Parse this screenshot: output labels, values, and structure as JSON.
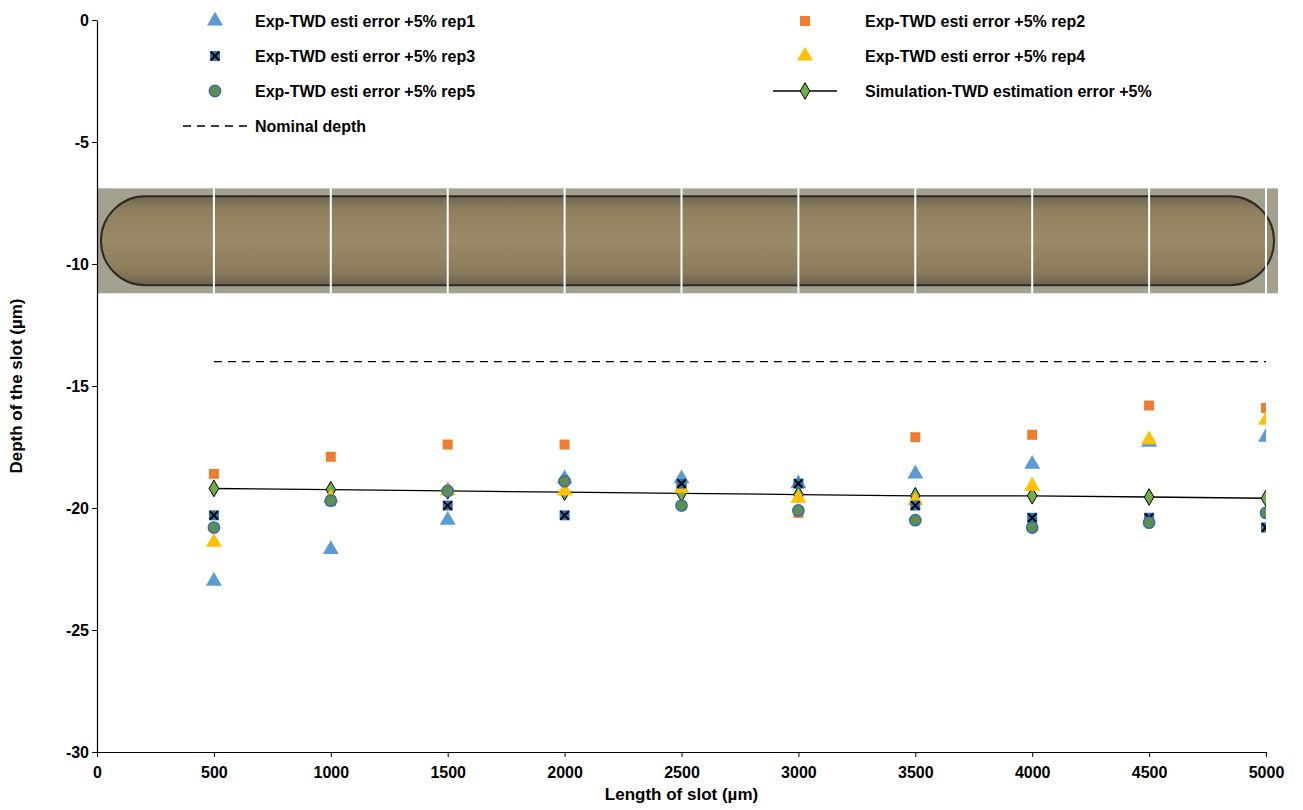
{
  "chart_data": {
    "type": "scatter",
    "x_label": "Length of slot (µm)",
    "y_label": "Depth of the slot (µm)",
    "x": [
      500,
      1000,
      1500,
      2000,
      2500,
      3000,
      3500,
      4000,
      4500,
      5000
    ],
    "series": [
      {
        "name": "Exp-TWD esti error +5% rep1",
        "type": "scatter",
        "marker": "triangle",
        "color": "#5b9bd5",
        "values": [
          -23.0,
          -21.7,
          -20.5,
          -18.8,
          -18.8,
          -19.0,
          -18.6,
          -18.2,
          -17.3,
          -17.1
        ]
      },
      {
        "name": "Exp-TWD esti error +5% rep2",
        "type": "scatter",
        "marker": "square",
        "color": "#ed7d31",
        "values": [
          -18.6,
          -17.9,
          -17.4,
          -17.4,
          -19.0,
          -20.2,
          -17.1,
          -17.0,
          -15.8,
          -15.9
        ]
      },
      {
        "name": "Exp-TWD esti error +5% rep3",
        "type": "scatter",
        "marker": "square-x",
        "color": "#2e75b6",
        "values": [
          -20.3,
          -19.7,
          -19.9,
          -20.3,
          -19.0,
          -19.0,
          -19.9,
          -20.4,
          -20.4,
          -20.8
        ]
      },
      {
        "name": "Exp-TWD esti error +5% rep4",
        "type": "scatter",
        "marker": "triangle",
        "color": "#ffc000",
        "values": [
          -21.4,
          -19.6,
          -19.3,
          -19.3,
          -19.2,
          -19.6,
          -19.7,
          -19.1,
          -17.2,
          -16.4
        ]
      },
      {
        "name": "Exp-TWD esti error +5% rep5",
        "type": "scatter",
        "marker": "circle",
        "color": "#5f8f4e",
        "values": [
          -20.8,
          -19.7,
          -19.3,
          -18.9,
          -19.9,
          -20.1,
          -20.5,
          -20.8,
          -20.6,
          -20.2
        ]
      },
      {
        "name": "Simulation-TWD estimation error +5%",
        "type": "line",
        "marker": "diamond",
        "line_style": "solid",
        "color": "#70ad47",
        "values": [
          -19.2,
          -19.25,
          -19.3,
          -19.35,
          -19.4,
          -19.45,
          -19.5,
          -19.5,
          -19.55,
          -19.6
        ]
      },
      {
        "name": "Nominal depth",
        "type": "line",
        "line_style": "dashed",
        "color": "#000000",
        "values": [
          -14,
          -14,
          -14,
          -14,
          -14,
          -14,
          -14,
          -14,
          -14,
          -14
        ]
      }
    ],
    "xlim": [
      0,
      5000
    ],
    "ylim": [
      -30,
      0
    ],
    "xticks": [
      0,
      500,
      1000,
      1500,
      2000,
      2500,
      3000,
      3500,
      4000,
      4500,
      5000
    ],
    "yticks": [
      0,
      -5,
      -10,
      -15,
      -20,
      -25,
      -30
    ],
    "grid": false,
    "legend": "top"
  }
}
